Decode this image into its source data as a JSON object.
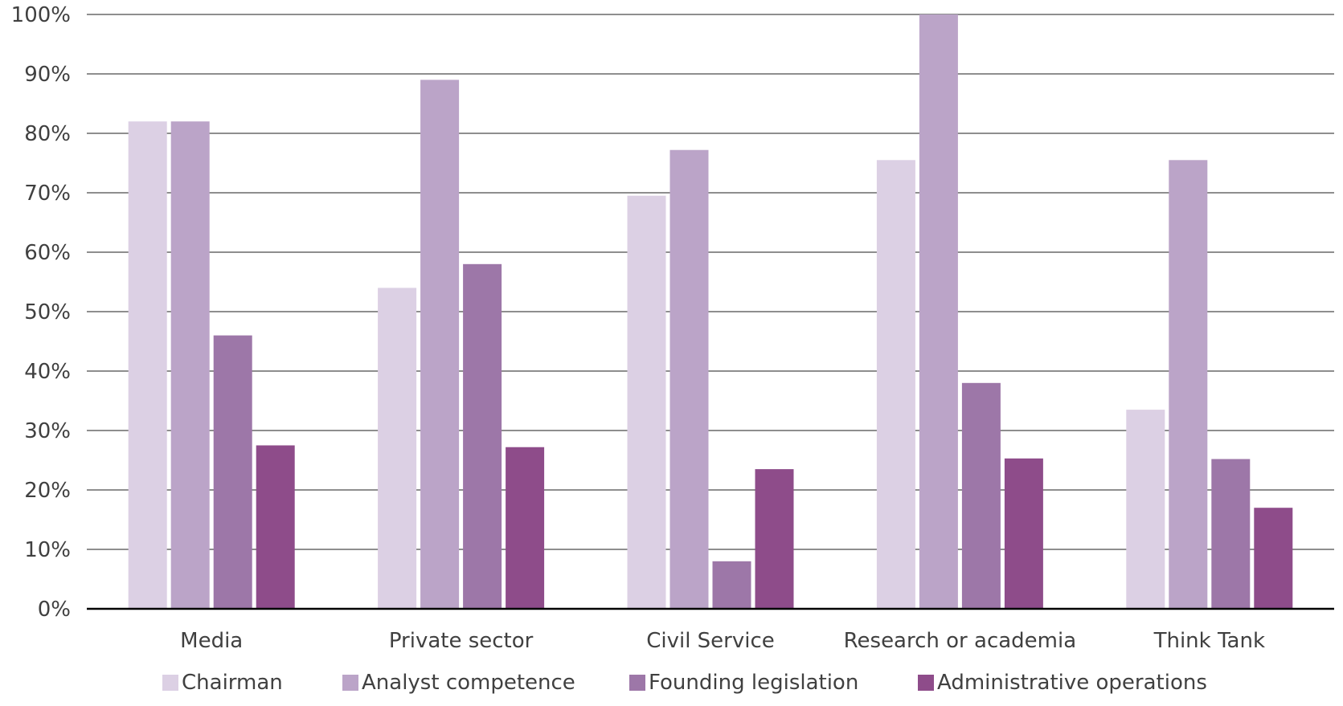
{
  "chart_data": {
    "type": "bar",
    "categories": [
      "Media",
      "Private sector",
      "Civil Service",
      "Research or academia",
      "Think Tank"
    ],
    "series": [
      {
        "name": "Chairman",
        "color": "#dcd0e4",
        "values": [
          82,
          54,
          69.5,
          75.5,
          33.5
        ]
      },
      {
        "name": "Analyst competence",
        "color": "#bba4c8",
        "values": [
          82,
          89,
          77.2,
          100,
          75.5
        ]
      },
      {
        "name": "Founding legislation",
        "color": "#9d77a8",
        "values": [
          46,
          58,
          8,
          38,
          25.2
        ]
      },
      {
        "name": "Administrative operations",
        "color": "#8e4c8a",
        "values": [
          27.5,
          27.2,
          23.5,
          25.3,
          17
        ]
      }
    ],
    "y_ticks": [
      "0%",
      "10%",
      "20%",
      "30%",
      "40%",
      "50%",
      "60%",
      "70%",
      "80%",
      "90%",
      "100%"
    ],
    "ylim": [
      0,
      100
    ],
    "grid": true,
    "legend_position": "bottom"
  }
}
